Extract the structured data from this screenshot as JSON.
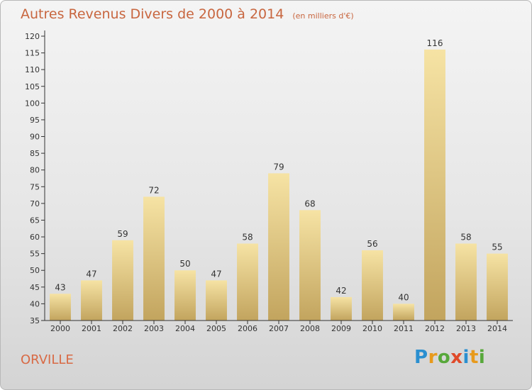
{
  "header": {
    "title": "Autres Revenus Divers de 2000 à 2014",
    "subtitle": "(en milliers d'€)"
  },
  "footer": {
    "town": "ORVILLE",
    "logo": "Proxiti"
  },
  "colors": {
    "title": "#c8663f",
    "town": "#d86a45",
    "bar_top": "#f6e3a4",
    "bar_bottom": "#c2a45e"
  },
  "chart_data": {
    "type": "bar",
    "title": "Autres Revenus Divers de 2000 à 2014",
    "subtitle": "(en milliers d'€)",
    "categories": [
      "2000",
      "2001",
      "2002",
      "2003",
      "2004",
      "2005",
      "2006",
      "2007",
      "2008",
      "2009",
      "2010",
      "2011",
      "2012",
      "2013",
      "2014"
    ],
    "values": [
      43,
      47,
      59,
      72,
      50,
      47,
      58,
      79,
      68,
      42,
      56,
      40,
      116,
      58,
      55
    ],
    "ylim": [
      35,
      120
    ],
    "yticks": [
      35,
      40,
      45,
      50,
      55,
      60,
      65,
      70,
      75,
      80,
      85,
      90,
      95,
      100,
      105,
      110,
      115,
      120
    ],
    "grid": false,
    "xlabel": "",
    "ylabel": ""
  }
}
